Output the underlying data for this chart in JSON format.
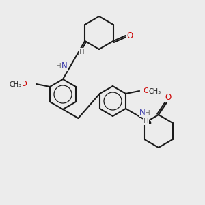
{
  "background_color": "#ececec",
  "bond_color": "#1a1a1a",
  "atom_colors": {
    "N": "#3a3aaa",
    "O": "#cc0000",
    "H": "#707070"
  },
  "figsize": [
    3.0,
    3.0
  ],
  "dpi": 100
}
